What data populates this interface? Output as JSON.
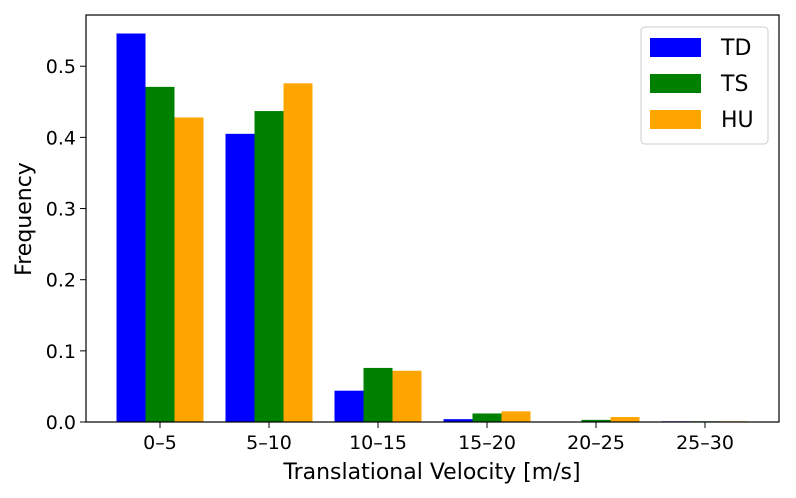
{
  "chart_data": {
    "type": "bar",
    "title": "",
    "xlabel": "Translational Velocity [m/s]",
    "ylabel": "Frequency",
    "categories": [
      "0–5",
      "5–10",
      "10–15",
      "15–20",
      "20–25",
      "25–30"
    ],
    "series": [
      {
        "name": "TD",
        "color": "#0000ff",
        "values": [
          0.546,
          0.405,
          0.044,
          0.004,
          0.0,
          0.001
        ]
      },
      {
        "name": "TS",
        "color": "#008000",
        "values": [
          0.471,
          0.437,
          0.076,
          0.012,
          0.003,
          0.001
        ]
      },
      {
        "name": "HU",
        "color": "#ffa500",
        "values": [
          0.428,
          0.476,
          0.072,
          0.015,
          0.007,
          0.001
        ]
      }
    ],
    "ylim": [
      0,
      0.572
    ],
    "yticks": [
      "0.0",
      "0.1",
      "0.2",
      "0.3",
      "0.4",
      "0.5"
    ],
    "grid": false,
    "legend_position": "top-right"
  }
}
